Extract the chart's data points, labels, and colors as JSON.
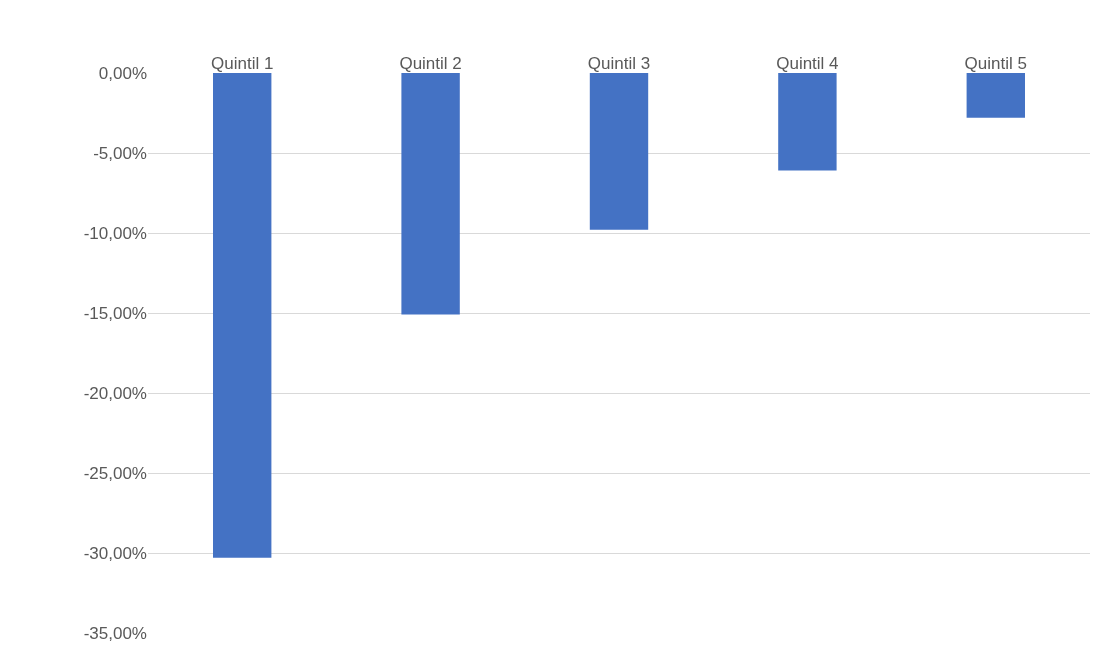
{
  "chart_data": {
    "type": "bar",
    "categories": [
      "Quintil 1",
      "Quintil 2",
      "Quintil 3",
      "Quintil 4",
      "Quintil 5"
    ],
    "values": [
      -30.3,
      -15.1,
      -9.8,
      -6.1,
      -2.8
    ],
    "color": "#4472c4",
    "ylim": [
      -35,
      0
    ],
    "yticks": [
      {
        "value": 0,
        "label": "0,00%"
      },
      {
        "value": -5,
        "label": "-5,00%"
      },
      {
        "value": -10,
        "label": "-10,00%"
      },
      {
        "value": -15,
        "label": "-15,00%"
      },
      {
        "value": -20,
        "label": "-20,00%"
      },
      {
        "value": -25,
        "label": "-25,00%"
      },
      {
        "value": -30,
        "label": "-30,00%"
      },
      {
        "value": -35,
        "label": "-35,00%"
      }
    ],
    "grid": "y"
  }
}
